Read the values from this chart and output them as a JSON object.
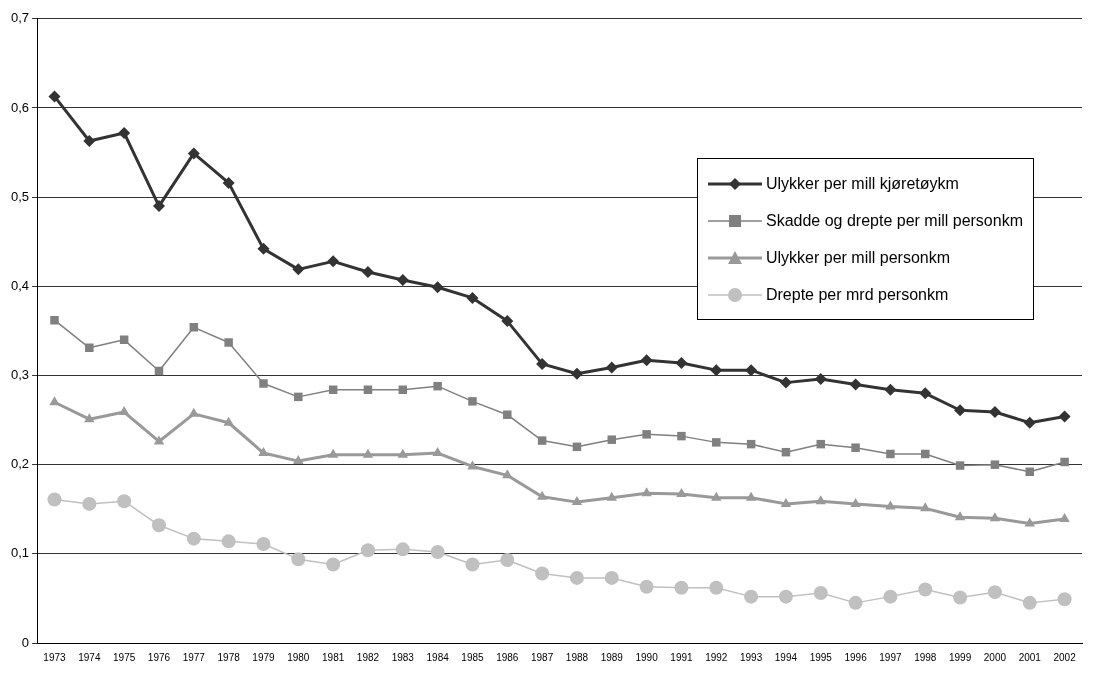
{
  "chart_data": {
    "type": "line",
    "categories": [
      "1973",
      "1974",
      "1975",
      "1976",
      "1977",
      "1978",
      "1979",
      "1980",
      "1981",
      "1982",
      "1983",
      "1984",
      "1985",
      "1986",
      "1987",
      "1988",
      "1989",
      "1990",
      "1991",
      "1992",
      "1993",
      "1994",
      "1995",
      "1996",
      "1997",
      "1998",
      "1999",
      "2000",
      "2001",
      "2002"
    ],
    "series": [
      {
        "name": "Ulykker per mill kjøretøykm",
        "color": "#333333",
        "marker": "diamond",
        "values": [
          0.613,
          0.563,
          0.572,
          0.49,
          0.549,
          0.516,
          0.442,
          0.419,
          0.428,
          0.416,
          0.407,
          0.399,
          0.387,
          0.361,
          0.313,
          0.302,
          0.309,
          0.317,
          0.314,
          0.306,
          0.306,
          0.292,
          0.296,
          0.29,
          0.284,
          0.28,
          0.261,
          0.259,
          0.247,
          0.254
        ]
      },
      {
        "name": "Skadde og drepte per mill personkm",
        "color": "#808080",
        "marker": "square",
        "values": [
          0.362,
          0.331,
          0.34,
          0.305,
          0.354,
          0.337,
          0.291,
          0.276,
          0.284,
          0.284,
          0.284,
          0.288,
          0.271,
          0.256,
          0.227,
          0.22,
          0.228,
          0.234,
          0.232,
          0.225,
          0.223,
          0.214,
          0.223,
          0.219,
          0.212,
          0.212,
          0.199,
          0.2,
          0.192,
          0.203
        ]
      },
      {
        "name": "Ulykker per mill personkm",
        "color": "#999999",
        "marker": "triangle",
        "values": [
          0.27,
          0.251,
          0.259,
          0.226,
          0.257,
          0.247,
          0.213,
          0.204,
          0.211,
          0.211,
          0.211,
          0.213,
          0.198,
          0.188,
          0.164,
          0.158,
          0.163,
          0.168,
          0.167,
          0.163,
          0.163,
          0.156,
          0.159,
          0.156,
          0.153,
          0.151,
          0.141,
          0.14,
          0.134,
          0.139
        ]
      },
      {
        "name": "Drepte per mrd personkm",
        "color": "#c0c0c0",
        "marker": "circle",
        "values": [
          0.161,
          0.156,
          0.159,
          0.132,
          0.117,
          0.114,
          0.111,
          0.094,
          0.088,
          0.104,
          0.105,
          0.102,
          0.088,
          0.093,
          0.078,
          0.073,
          0.073,
          0.063,
          0.062,
          0.062,
          0.052,
          0.052,
          0.056,
          0.045,
          0.052,
          0.06,
          0.051,
          0.057,
          0.045,
          0.049
        ]
      }
    ],
    "ylim": [
      0,
      0.7
    ],
    "yticks": [
      0,
      {
        "value": 0.1,
        "label": "0,1"
      },
      {
        "value": 0.2,
        "label": "0,2"
      },
      {
        "value": 0.3,
        "label": "0,3"
      },
      {
        "value": 0.4,
        "label": "0,4"
      },
      {
        "value": 0.5,
        "label": "0,5"
      },
      {
        "value": 0.6,
        "label": "0,6"
      },
      {
        "value": 0.7,
        "label": "0,7"
      }
    ],
    "grid": "y",
    "legend": "right",
    "line_style": "solid"
  }
}
